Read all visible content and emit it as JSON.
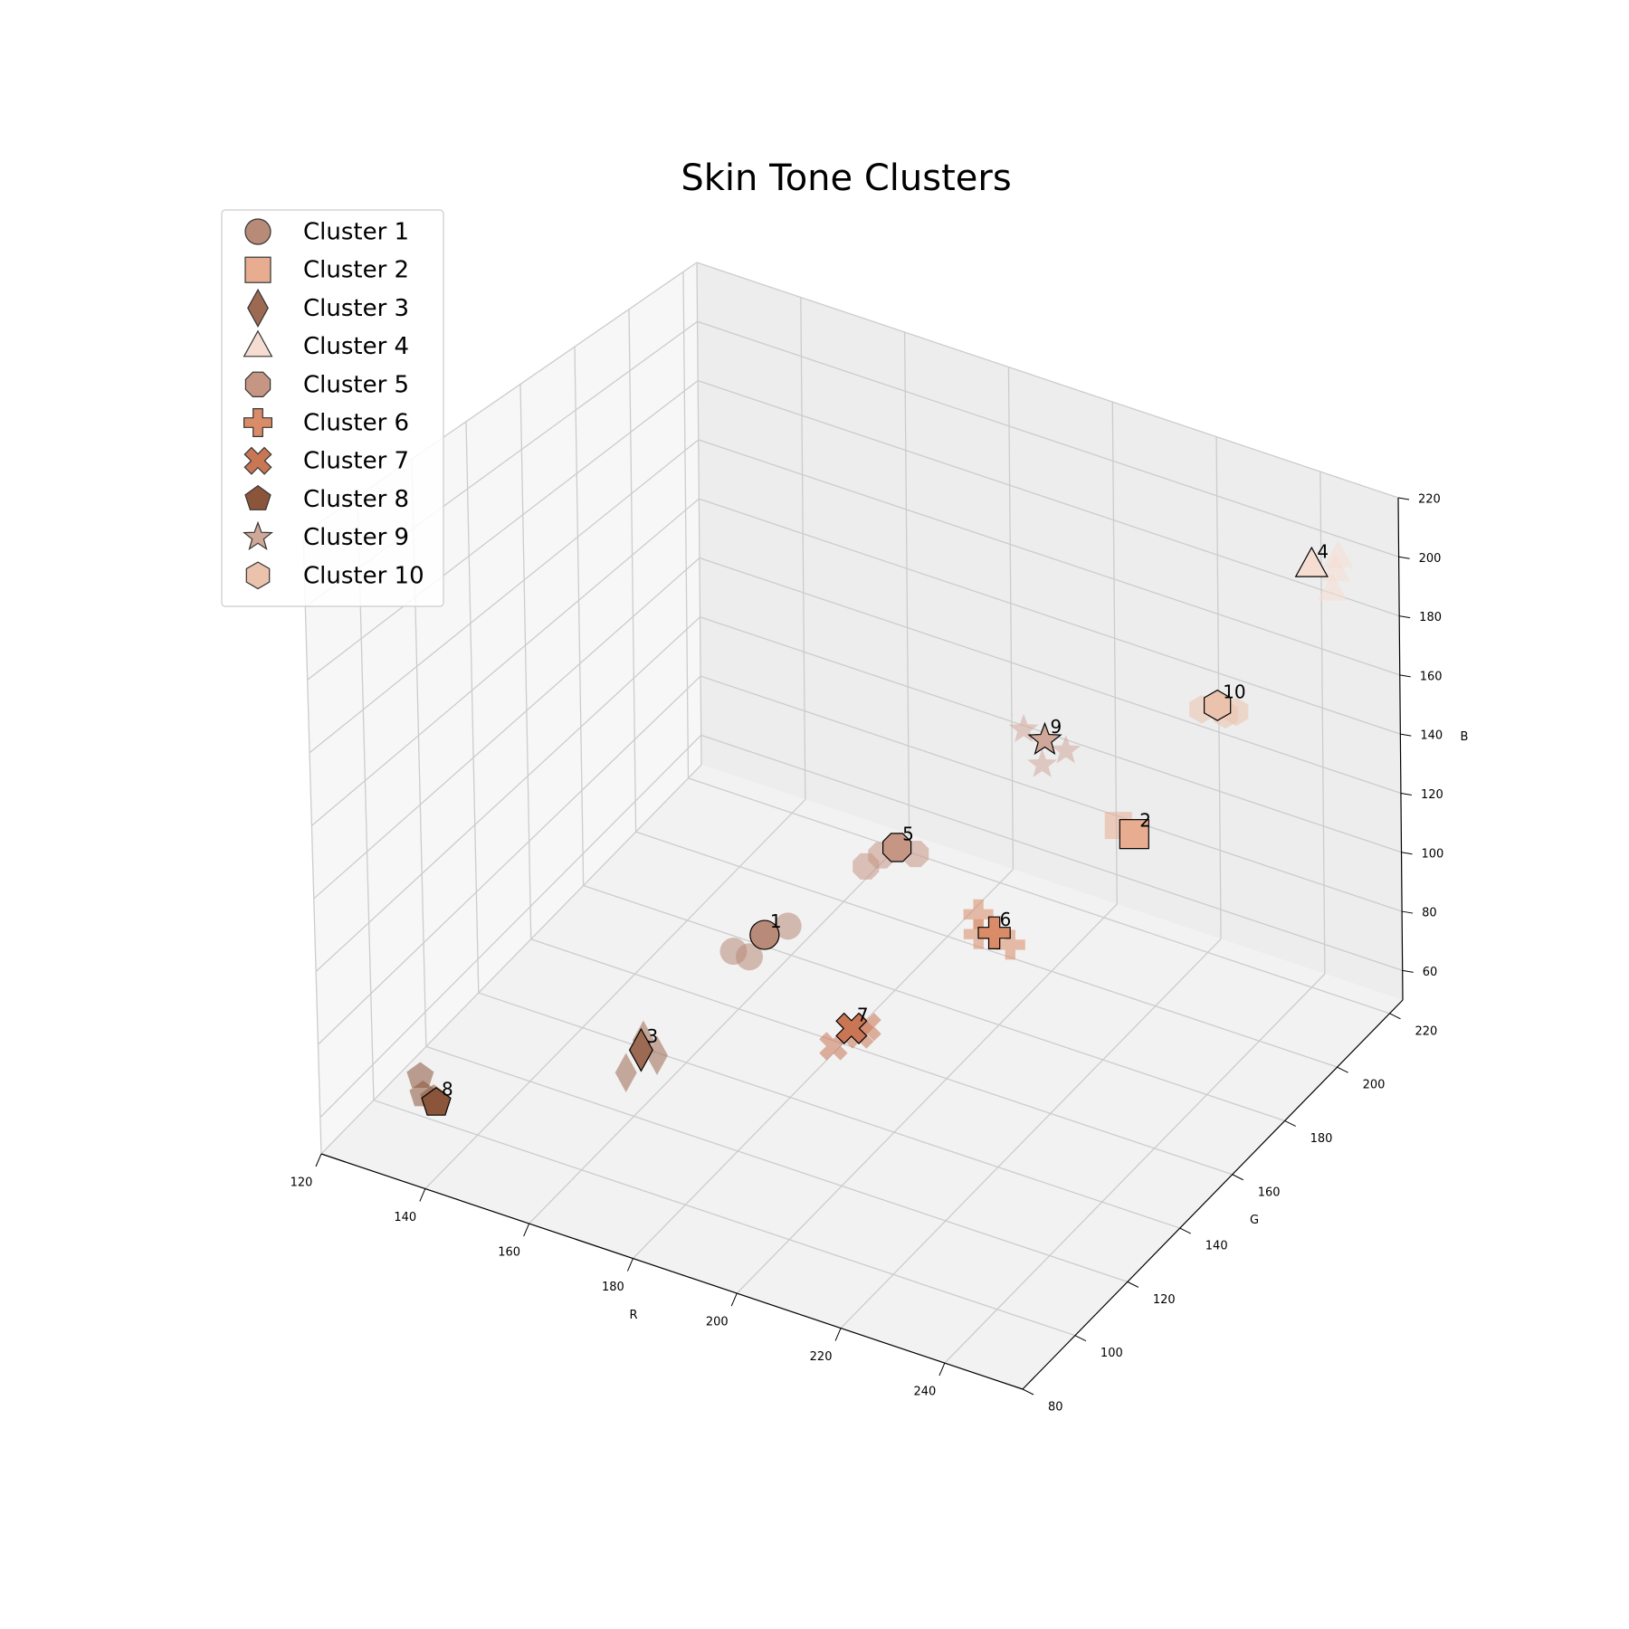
{
  "chart_data": {
    "type": "scatter",
    "projection": "3d",
    "title": "Skin Tone Clusters",
    "xlabel": "R",
    "ylabel": "G",
    "zlabel": "B",
    "xlim": [
      120,
      255
    ],
    "ylim": [
      80,
      225
    ],
    "zlim": [
      50,
      220
    ],
    "x_ticks": [
      "120",
      "140",
      "160",
      "180",
      "200",
      "220",
      "240"
    ],
    "y_ticks": [
      "80",
      "100",
      "120",
      "140",
      "160",
      "180",
      "200",
      "220"
    ],
    "z_ticks": [
      "60",
      "80",
      "100",
      "120",
      "140",
      "160",
      "180",
      "200",
      "220"
    ],
    "grid": true,
    "legend_position": "top-left",
    "series": [
      {
        "name": "Cluster 1",
        "label": "1",
        "marker": "circle",
        "color": "#b88a78",
        "centroid": {
          "r": 182,
          "g": 128,
          "b": 108
        },
        "points": [
          {
            "r": 178,
            "g": 124,
            "b": 104
          },
          {
            "r": 185,
            "g": 131,
            "b": 110
          },
          {
            "r": 180,
            "g": 126,
            "b": 102
          }
        ]
      },
      {
        "name": "Cluster 2",
        "label": "2",
        "marker": "square",
        "color": "#e8ad90",
        "centroid": {
          "r": 232,
          "g": 170,
          "b": 135
        },
        "points": [
          {
            "r": 230,
            "g": 168,
            "b": 138
          }
        ]
      },
      {
        "name": "Cluster 3",
        "label": "3",
        "marker": "diamond",
        "color": "#9c6a52",
        "centroid": {
          "r": 168,
          "g": 108,
          "b": 82
        },
        "points": [
          {
            "r": 170,
            "g": 110,
            "b": 80
          },
          {
            "r": 166,
            "g": 106,
            "b": 76
          },
          {
            "r": 169,
            "g": 107,
            "b": 86
          }
        ]
      },
      {
        "name": "Cluster 4",
        "label": "4",
        "marker": "triangle",
        "color": "#f5ddd2",
        "centroid": {
          "r": 245,
          "g": 212,
          "b": 200
        },
        "points": [
          {
            "r": 248,
            "g": 215,
            "b": 198
          },
          {
            "r": 250,
            "g": 210,
            "b": 196
          },
          {
            "r": 247,
            "g": 218,
            "b": 200
          }
        ]
      },
      {
        "name": "Cluster 5",
        "label": "5",
        "marker": "octagon",
        "color": "#c49683",
        "centroid": {
          "r": 197,
          "g": 149,
          "b": 127
        },
        "points": [
          {
            "r": 195,
            "g": 147,
            "b": 125
          },
          {
            "r": 199,
            "g": 152,
            "b": 124
          },
          {
            "r": 193,
            "g": 145,
            "b": 122
          }
        ]
      },
      {
        "name": "Cluster 6",
        "label": "6",
        "marker": "plus",
        "color": "#d98c67",
        "centroid": {
          "r": 215,
          "g": 150,
          "b": 110
        },
        "points": [
          {
            "r": 213,
            "g": 148,
            "b": 110
          },
          {
            "r": 217,
            "g": 152,
            "b": 106
          },
          {
            "r": 212,
            "g": 150,
            "b": 114
          }
        ]
      },
      {
        "name": "Cluster 7",
        "label": "7",
        "marker": "x",
        "color": "#c97655",
        "centroid": {
          "r": 200,
          "g": 125,
          "b": 92
        },
        "points": [
          {
            "r": 202,
            "g": 127,
            "b": 92
          },
          {
            "r": 198,
            "g": 122,
            "b": 88
          },
          {
            "r": 201,
            "g": 126,
            "b": 90
          }
        ]
      },
      {
        "name": "Cluster 8",
        "label": "8",
        "marker": "pentagon",
        "color": "#8a553b",
        "centroid": {
          "r": 140,
          "g": 85,
          "b": 70
        },
        "points": [
          {
            "r": 138,
            "g": 84,
            "b": 72
          },
          {
            "r": 136,
            "g": 87,
            "b": 74
          },
          {
            "r": 139,
            "g": 86,
            "b": 70
          }
        ]
      },
      {
        "name": "Cluster 9",
        "label": "9",
        "marker": "star",
        "color": "#cfa89a",
        "centroid": {
          "r": 215,
          "g": 170,
          "b": 155
        },
        "points": [
          {
            "r": 212,
            "g": 168,
            "b": 158
          },
          {
            "r": 218,
            "g": 172,
            "b": 152
          },
          {
            "r": 216,
            "g": 167,
            "b": 150
          }
        ]
      },
      {
        "name": "Cluster 10",
        "label": "10",
        "marker": "hexagon",
        "color": "#ebc2ac",
        "centroid": {
          "r": 238,
          "g": 190,
          "b": 165
        },
        "points": [
          {
            "r": 240,
            "g": 193,
            "b": 162
          },
          {
            "r": 236,
            "g": 188,
            "b": 164
          },
          {
            "r": 239,
            "g": 191,
            "b": 162
          }
        ]
      }
    ]
  }
}
